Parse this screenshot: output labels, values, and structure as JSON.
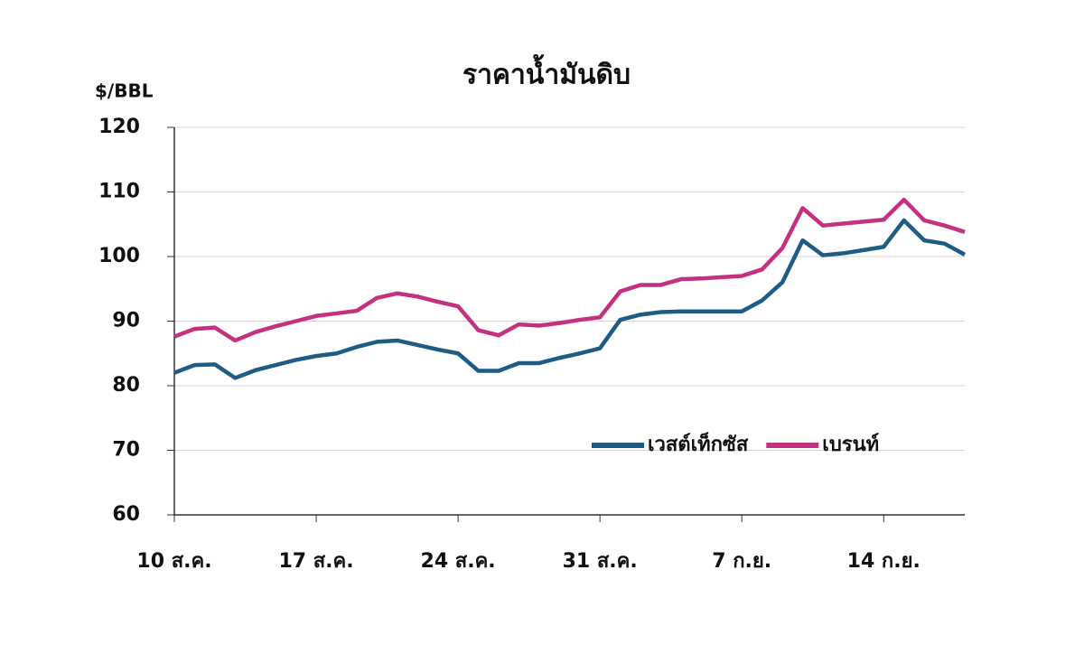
{
  "chart_data": {
    "type": "line",
    "title": "ราคาน้ำมันดิบ",
    "y_label": "$/BBL",
    "categories": [
      "10 ส.ค.",
      null,
      null,
      null,
      null,
      null,
      null,
      "17 ส.ค.",
      null,
      null,
      null,
      null,
      null,
      null,
      "24 ส.ค.",
      null,
      null,
      null,
      null,
      null,
      null,
      "31 ส.ค.",
      null,
      null,
      null,
      null,
      null,
      null,
      "7 ก.ย.",
      null,
      null,
      null,
      null,
      null,
      null,
      "14 ก.ย.",
      null,
      null,
      null,
      null
    ],
    "series": [
      {
        "name": "เวสต์เท็กซัส",
        "color": "#1f5c85",
        "values": [
          82,
          83.2,
          83.3,
          81.2,
          82.4,
          83.2,
          84,
          84.6,
          85,
          86,
          86.8,
          87,
          86.3,
          85.6,
          85,
          82.3,
          82.3,
          83.5,
          83.5,
          84.3,
          85,
          85.8,
          90.2,
          91,
          91.4,
          91.5,
          91.5,
          91.5,
          91.5,
          93.2,
          96,
          102.5,
          100.2,
          100.5,
          101,
          101.5,
          105.6,
          102.5,
          102,
          100.3
        ]
      },
      {
        "name": "เบรนท์",
        "color": "#c4317f",
        "values": [
          87.6,
          88.8,
          89,
          87,
          88.3,
          89.2,
          90,
          90.8,
          91.2,
          91.6,
          93.6,
          94.3,
          93.8,
          93,
          92.3,
          88.6,
          87.8,
          89.5,
          89.3,
          89.7,
          90.2,
          90.6,
          94.6,
          95.6,
          95.6,
          96.5,
          96.6,
          96.8,
          97,
          98,
          101.3,
          107.5,
          104.8,
          105.1,
          105.4,
          105.7,
          108.8,
          105.6,
          104.8,
          103.8
        ]
      }
    ],
    "ylim": [
      60,
      120
    ],
    "yticks": [
      60,
      70,
      80,
      90,
      100,
      110,
      120
    ],
    "grid": true,
    "legend": "lower right"
  }
}
